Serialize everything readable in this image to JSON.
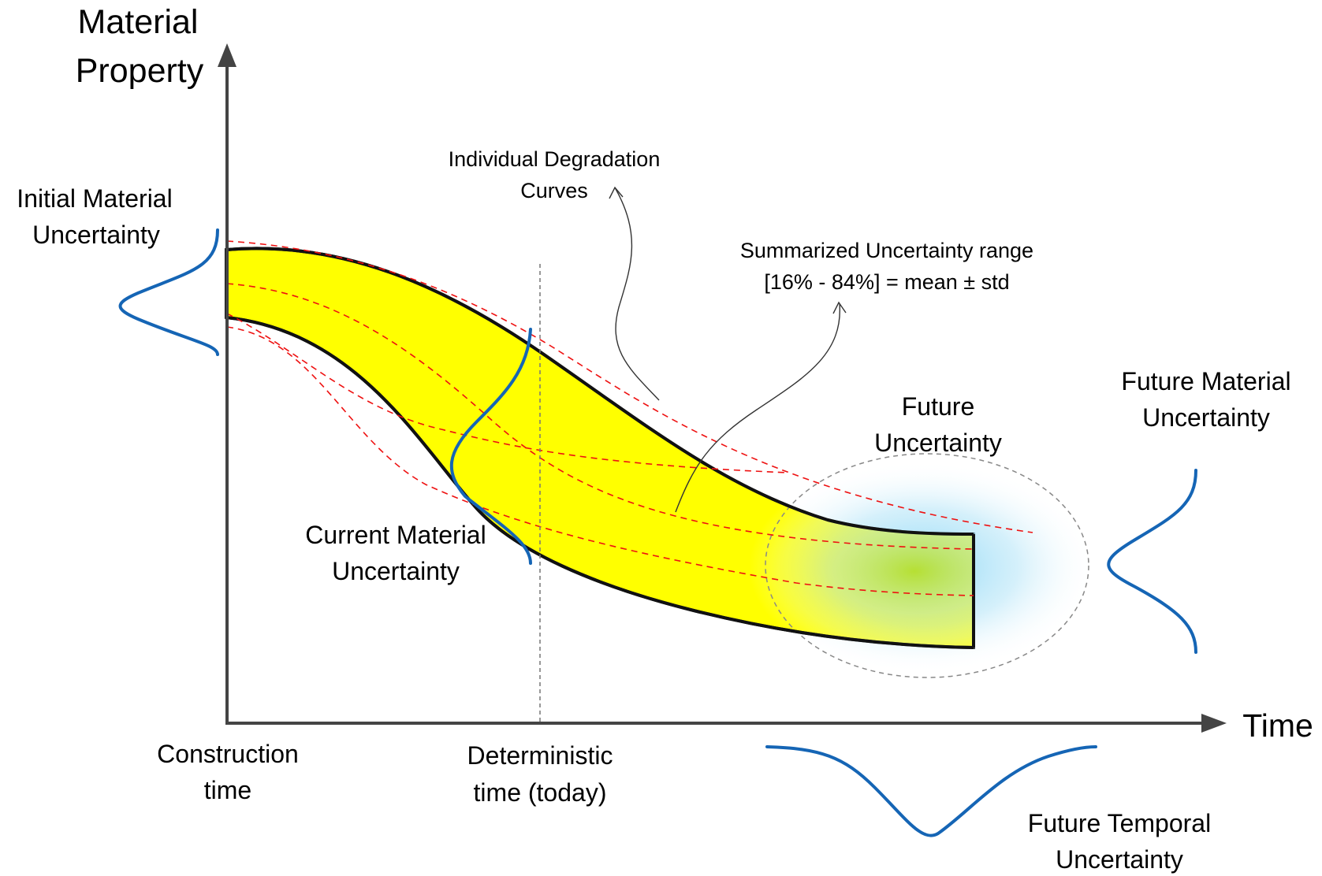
{
  "axes": {
    "y_label_line1": "Material",
    "y_label_line2": "Property",
    "x_label": "Time"
  },
  "labels": {
    "initial_line1": "Initial Material",
    "initial_line2": "Uncertainty",
    "individual_line1": "Individual Degradation",
    "individual_line2": "Curves",
    "summarized_line1": "Summarized Uncertainty range",
    "summarized_line2": "[16% - 84%] = mean ± std",
    "future_line1": "Future",
    "future_line2": "Uncertainty",
    "future_material_line1": "Future Material",
    "future_material_line2": "Uncertainty",
    "current_line1": "Current Material",
    "current_line2": "Uncertainty",
    "construction_line1": "Construction",
    "construction_line2": "time",
    "deterministic_line1": "Deterministic",
    "deterministic_line2": "time (today)",
    "temporal_line1": "Future Temporal",
    "temporal_line2": "Uncertainty"
  },
  "colors": {
    "band_fill": "#ffff00",
    "band_edge": "#111111",
    "degradation_curves": "#ee1111",
    "distribution_curves": "#1565b5",
    "axes": "#444444",
    "future_glow": "#7fd3f5",
    "future_core": "#b8e02a"
  }
}
